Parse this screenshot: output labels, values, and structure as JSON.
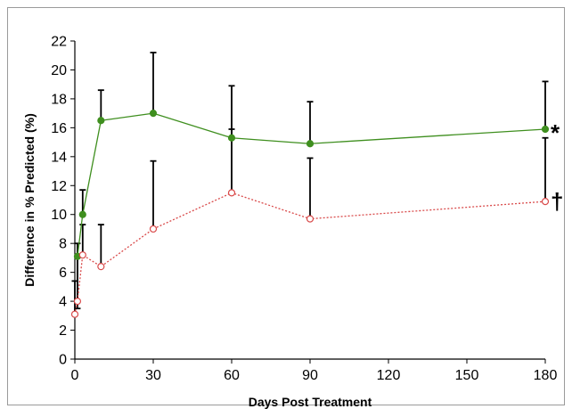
{
  "chart_data": {
    "type": "line",
    "title": "",
    "xlabel": "Days Post Treatment",
    "ylabel": "Difference in % Predicted (%)",
    "xlim": [
      0,
      180
    ],
    "ylim": [
      0,
      22
    ],
    "xticks": [
      0,
      30,
      60,
      90,
      120,
      150,
      180
    ],
    "yticks": [
      0,
      2,
      4,
      6,
      8,
      10,
      12,
      14,
      16,
      18,
      20,
      22
    ],
    "grid": false,
    "legend": "none",
    "series": [
      {
        "color": "#3f8f1f",
        "marker": "filled-circle",
        "line_style": "solid",
        "end_label": "*",
        "x": [
          1,
          3,
          10,
          30,
          60,
          90,
          180
        ],
        "y": [
          7.1,
          10.0,
          16.5,
          17.0,
          15.3,
          14.9,
          15.9
        ],
        "err_upper": [
          3.5,
          11.7,
          18.6,
          21.2,
          18.9,
          17.8,
          19.2
        ]
      },
      {
        "color": "#d94a4a",
        "marker": "open-circle",
        "line_style": "dotted",
        "end_label": "†",
        "x": [
          0,
          1,
          3,
          10,
          30,
          60,
          90,
          180
        ],
        "y": [
          3.1,
          4.0,
          7.2,
          6.4,
          9.0,
          11.5,
          9.7,
          10.9
        ],
        "err_upper": [
          5.4,
          8.0,
          9.3,
          9.3,
          13.7,
          15.9,
          13.9,
          15.3
        ]
      }
    ]
  }
}
